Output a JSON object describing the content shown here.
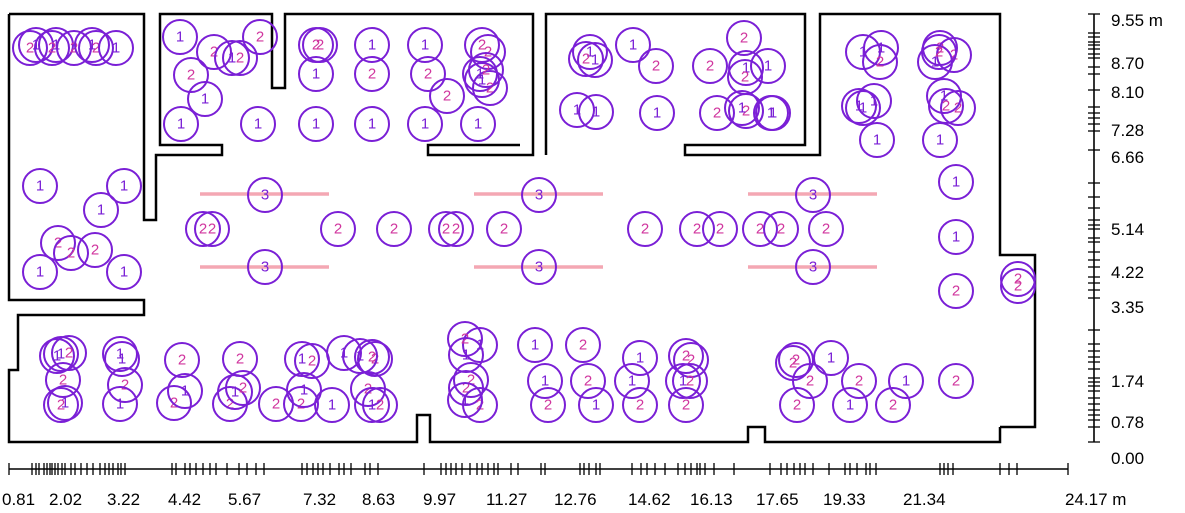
{
  "colors": {
    "walls": "#000000",
    "marker": "#7a1fd6",
    "marker_label_2": "#d0359e",
    "light_strip": "#f4a7b3"
  },
  "axes": {
    "x_labels": [
      "0.81",
      "2.02",
      "3.22",
      "4.42",
      "5.67",
      "7.32",
      "8.63",
      "9.97",
      "11.27",
      "12.76",
      "14.62",
      "16.13",
      "17.65",
      "19.33",
      "21.34",
      "24.17 m"
    ],
    "y_labels": [
      "9.55 m",
      "8.70",
      "8.10",
      "7.28",
      "6.66",
      "5.14",
      "4.22",
      "3.35",
      "1.74",
      "0.78",
      "0.00"
    ]
  },
  "markers": [
    {
      "label": "2"
    },
    {
      "label": "1"
    },
    {
      "label": "2"
    },
    {
      "label": "1"
    },
    {
      "label": "2"
    },
    {
      "label": "1"
    },
    {
      "label": "2"
    },
    {
      "label": "1"
    },
    {
      "label": "1"
    },
    {
      "label": "2"
    },
    {
      "label": "2"
    },
    {
      "label": "1"
    },
    {
      "label": "2"
    },
    {
      "label": "2"
    },
    {
      "label": "1"
    },
    {
      "label": "2"
    },
    {
      "label": "1"
    },
    {
      "label": "2"
    },
    {
      "label": "1"
    },
    {
      "label": "2"
    },
    {
      "label": "1"
    },
    {
      "label": "2"
    },
    {
      "label": "2"
    },
    {
      "label": "1"
    },
    {
      "label": "2"
    },
    {
      "label": "2"
    },
    {
      "label": "1"
    },
    {
      "label": "1"
    },
    {
      "label": "1"
    },
    {
      "label": "1"
    },
    {
      "label": "1"
    },
    {
      "label": "1"
    },
    {
      "label": "2"
    },
    {
      "label": "1"
    },
    {
      "label": "2"
    },
    {
      "label": "1"
    },
    {
      "label": "1"
    },
    {
      "label": "2"
    },
    {
      "label": "1"
    },
    {
      "label": "2"
    },
    {
      "label": "1"
    },
    {
      "label": "1"
    },
    {
      "label": "1"
    },
    {
      "label": "2"
    },
    {
      "label": "1"
    },
    {
      "label": "2"
    },
    {
      "label": "1"
    },
    {
      "label": "2"
    },
    {
      "label": "1"
    },
    {
      "label": "2"
    },
    {
      "label": "1"
    },
    {
      "label": "2"
    },
    {
      "label": "1"
    },
    {
      "label": "1"
    },
    {
      "label": "1"
    },
    {
      "label": "1"
    },
    {
      "label": "1"
    },
    {
      "label": "2"
    },
    {
      "label": "2"
    },
    {
      "label": "2"
    },
    {
      "label": "1"
    },
    {
      "label": "1"
    },
    {
      "label": "3"
    },
    {
      "label": "3"
    },
    {
      "label": "3"
    },
    {
      "label": "3"
    },
    {
      "label": "3"
    },
    {
      "label": "3"
    },
    {
      "label": "2"
    },
    {
      "label": "2"
    },
    {
      "label": "2"
    },
    {
      "label": "2"
    },
    {
      "label": "2"
    },
    {
      "label": "2"
    },
    {
      "label": "2"
    },
    {
      "label": "2"
    },
    {
      "label": "2"
    },
    {
      "label": "2"
    },
    {
      "label": "2"
    },
    {
      "label": "2"
    },
    {
      "label": "2"
    },
    {
      "label": "2"
    },
    {
      "label": "1"
    },
    {
      "label": "1"
    },
    {
      "label": "1"
    },
    {
      "label": "1"
    },
    {
      "label": "2"
    },
    {
      "label": "2"
    },
    {
      "label": "1"
    },
    {
      "label": "2"
    },
    {
      "label": "2"
    },
    {
      "label": "1"
    },
    {
      "label": "1"
    },
    {
      "label": "2"
    },
    {
      "label": "2"
    },
    {
      "label": "1"
    },
    {
      "label": "1"
    },
    {
      "label": "1"
    },
    {
      "label": "2"
    },
    {
      "label": "2"
    },
    {
      "label": "1"
    },
    {
      "label": "1"
    },
    {
      "label": "2"
    },
    {
      "label": "1"
    },
    {
      "label": "1"
    },
    {
      "label": "2"
    },
    {
      "label": "2"
    },
    {
      "label": "1"
    },
    {
      "label": "2"
    },
    {
      "label": "1"
    },
    {
      "label": "2"
    },
    {
      "label": "2"
    },
    {
      "label": "1"
    },
    {
      "label": "2"
    },
    {
      "label": "1"
    },
    {
      "label": "2"
    },
    {
      "label": "2"
    },
    {
      "label": "1"
    },
    {
      "label": "2"
    },
    {
      "label": "1"
    },
    {
      "label": "2"
    },
    {
      "label": "1"
    },
    {
      "label": "2"
    },
    {
      "label": "2"
    },
    {
      "label": "2"
    },
    {
      "label": "1"
    },
    {
      "label": "1"
    },
    {
      "label": "2"
    },
    {
      "label": "1"
    },
    {
      "label": "2"
    },
    {
      "label": "1"
    },
    {
      "label": "2"
    },
    {
      "label": "1"
    },
    {
      "label": "1"
    },
    {
      "label": "2"
    },
    {
      "label": "1"
    },
    {
      "label": "2"
    },
    {
      "label": "2"
    },
    {
      "label": "2"
    },
    {
      "label": "2"
    },
    {
      "label": "2"
    },
    {
      "label": "2"
    },
    {
      "label": "1"
    },
    {
      "label": "2"
    },
    {
      "label": "2"
    },
    {
      "label": "2"
    },
    {
      "label": "1"
    },
    {
      "label": "2"
    },
    {
      "label": "1"
    },
    {
      "label": "1"
    },
    {
      "label": "1"
    },
    {
      "label": "2"
    },
    {
      "label": "2"
    },
    {
      "label": "1"
    },
    {
      "label": "2"
    },
    {
      "label": "2"
    },
    {
      "label": "1"
    },
    {
      "label": "2"
    },
    {
      "label": "2"
    },
    {
      "label": "1"
    },
    {
      "label": "2"
    }
  ]
}
